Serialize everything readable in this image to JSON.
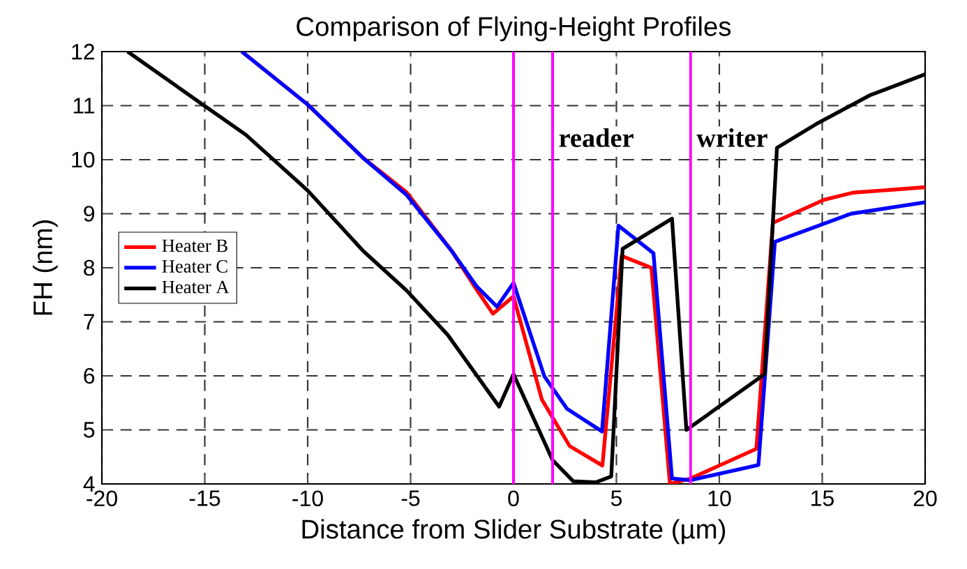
{
  "chart_data": {
    "type": "line",
    "title": "Comparison of Flying-Height Profiles",
    "xlabel": "Distance from Slider Substrate (µm)",
    "ylabel": "FH (nm)",
    "xlim": [
      -20,
      20
    ],
    "ylim": [
      4,
      12
    ],
    "xticks": [
      -20,
      -15,
      -10,
      -5,
      0,
      5,
      10,
      15,
      20
    ],
    "yticks": [
      4,
      5,
      6,
      7,
      8,
      9,
      10,
      11,
      12
    ],
    "grid": true,
    "legend": "left",
    "line_style": "solid",
    "marker": "none",
    "series": [
      {
        "name": "Heater B",
        "color": "#ff0000",
        "x": [
          -13.2,
          -10,
          -7.3,
          -5.2,
          -3.0,
          -1.8,
          -1.0,
          0,
          1.38,
          2.73,
          4.32,
          5.25,
          6.7,
          7.6,
          8.6,
          11.8,
          12.6,
          15.1,
          16.5,
          20
        ],
        "values": [
          12,
          11.02,
          10.03,
          9.4,
          8.31,
          7.6,
          7.15,
          7.47,
          5.56,
          4.7,
          4.34,
          8.22,
          8.0,
          4.0,
          4.1,
          4.65,
          8.83,
          9.26,
          9.39,
          9.49
        ]
      },
      {
        "name": "Heater C",
        "color": "#0000ff",
        "x": [
          -13.2,
          -10,
          -7.3,
          -5.2,
          -3.0,
          -1.8,
          -0.8,
          0,
          1.5,
          2.6,
          4.3,
          5.1,
          6.8,
          7.7,
          8.6,
          11.9,
          12.7,
          16.4,
          20
        ],
        "values": [
          12,
          11.02,
          10.03,
          9.35,
          8.31,
          7.66,
          7.28,
          7.72,
          5.99,
          5.39,
          4.97,
          8.78,
          8.27,
          4.1,
          4.07,
          4.35,
          8.48,
          9.0,
          9.21
        ]
      },
      {
        "name": "Heater A",
        "color": "#000000",
        "x": [
          -18.75,
          -15.1,
          -13.0,
          -10.0,
          -7.3,
          -5.2,
          -3.2,
          -0.7,
          0,
          1.9,
          2.9,
          4.0,
          4.75,
          5.3,
          7.7,
          8.4,
          12.2,
          12.8,
          14.8,
          17.3,
          20
        ],
        "values": [
          12,
          11.02,
          10.46,
          9.43,
          8.31,
          7.58,
          6.76,
          5.43,
          6.03,
          4.44,
          4.05,
          4.03,
          4.14,
          8.35,
          8.91,
          5.0,
          6.03,
          10.22,
          10.68,
          11.19,
          11.58
        ]
      }
    ],
    "ref_lines": [
      {
        "axis": "x",
        "value": 0,
        "color": "#ff00ff"
      },
      {
        "axis": "x",
        "value": 1.9,
        "color": "#ff00ff",
        "label": "reader"
      },
      {
        "axis": "x",
        "value": 8.6,
        "color": "#ff00ff",
        "label": "writer"
      }
    ]
  }
}
